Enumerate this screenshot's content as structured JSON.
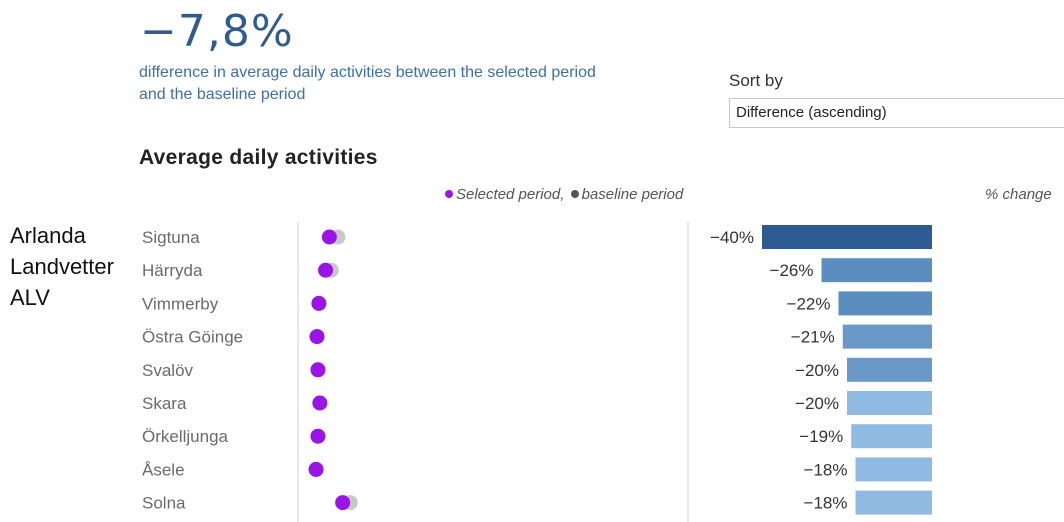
{
  "kpi": {
    "value": "−7,8%",
    "caption": "difference in average daily activities between the selected period and the baseline period"
  },
  "sort": {
    "label": "Sort by",
    "selected": "Difference (ascending)"
  },
  "aliases": [
    "Arlanda",
    "Landvetter",
    "ALV"
  ],
  "colors": {
    "selected": "#9b14e6",
    "baseline": "#c8c8c8",
    "kpi": "#2f5b8e",
    "bar_dark": "#2e5c92",
    "bar_mid": "#5b8dc1",
    "bar_mid2": "#6a98c9",
    "bar_light": "#8fbbe2"
  },
  "chart_data": {
    "type": "bar",
    "title": "Average daily activities",
    "legend": {
      "selected_label": "Selected period,",
      "baseline_label": "baseline period",
      "position": "top"
    },
    "pct_header": "% change",
    "categories": [
      "Sigtuna",
      "Härryda",
      "Vimmerby",
      "Östra Göinge",
      "Svalöv",
      "Skara",
      "Örkelljunga",
      "Åsele",
      "Solna"
    ],
    "dot_series": {
      "selected": [
        0.33,
        0.29,
        0.22,
        0.2,
        0.21,
        0.23,
        0.21,
        0.19,
        0.47
      ],
      "baseline": [
        0.42,
        0.35,
        0.22,
        0.2,
        0.21,
        0.23,
        0.21,
        0.19,
        0.55
      ]
    },
    "pct_change": [
      -40,
      -26,
      -22,
      -21,
      -20,
      -20,
      -19,
      -18,
      -18
    ],
    "pct_labels": [
      "−40%",
      "−26%",
      "−22%",
      "−21%",
      "−20%",
      "−20%",
      "−19%",
      "−18%",
      "−18%"
    ],
    "bar_shade": [
      "dark",
      "mid",
      "mid",
      "mid2",
      "mid2",
      "light",
      "light",
      "light",
      "light"
    ]
  }
}
